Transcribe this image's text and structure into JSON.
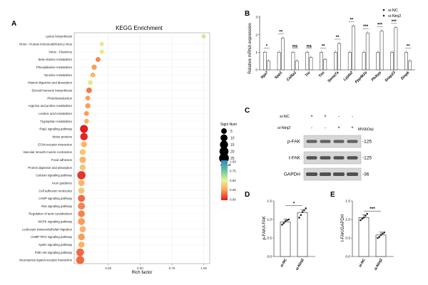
{
  "panel_labels": {
    "a": "A",
    "b": "B",
    "c": "C",
    "d": "D",
    "e": "E"
  },
  "colors": {
    "dot_low": "#e41a1c",
    "dot_mid": "#fee08b",
    "dot_high": "#3288bd",
    "bar_edge": "#222222",
    "blot_band": "#3a3a3a",
    "blot_bg": "#d6d6d6"
  },
  "chart_data": [
    {
      "id": "kegg",
      "type": "scatter",
      "title": "KEGG Enrichment",
      "xlabel": "Rich factor",
      "ylabel": "",
      "xlim": [
        0.0,
        1.03
      ],
      "xticks": [
        0.25,
        0.5,
        0.75,
        1.0
      ],
      "xtick_labels": [
        "0.25",
        "0.50",
        "0.75",
        "1.00"
      ],
      "terms": [
        "Lysine biosynthesis",
        "Virion - Human immunodeficiency virus",
        "Virion - Flavivirus",
        "beta-Alanine metabolism",
        "Phenylalanine metabolism",
        "Tyrosine metabolism",
        "Vitamin digestion and absorption",
        "Steroid hormone biosynthesis",
        "Phototransduction",
        "Arginine and proline metabolism",
        "Linoleic acid metabolism",
        "Tryptophan metabolism",
        "Rap1 signaling pathway",
        "Motor proteins",
        "ECM-receptor interaction",
        "Vascular smooth muscle contraction",
        "Focal adhesion",
        "Protein digestion and absorption",
        "Calcium signaling pathway",
        "Axon guidance",
        "Cell adhesion molecules",
        "cAMP signaling pathway",
        "Ras signaling pathway",
        "Regulation of actin cytoskeleton",
        "MAPK signaling pathway",
        "Leukocyte transendothelial migration",
        "cGMP-PKG signaling pathway",
        "Apelin signaling pathway",
        "PI3K-Akt signaling pathway",
        "Neuroactive ligand-receptor interaction"
      ],
      "rich_factor": [
        1.0,
        0.2,
        0.2,
        0.17,
        0.14,
        0.13,
        0.11,
        0.1,
        0.09,
        0.09,
        0.08,
        0.08,
        0.06,
        0.06,
        0.06,
        0.05,
        0.05,
        0.05,
        0.04,
        0.04,
        0.04,
        0.04,
        0.04,
        0.04,
        0.04,
        0.05,
        0.04,
        0.04,
        0.03,
        0.03
      ],
      "signi_num": [
        2,
        2,
        2,
        3,
        4,
        3,
        3,
        5,
        3,
        4,
        3,
        3,
        14,
        12,
        6,
        6,
        8,
        6,
        16,
        7,
        7,
        10,
        10,
        9,
        10,
        7,
        9,
        7,
        13,
        15
      ],
      "qvalue": [
        0.55,
        0.45,
        0.45,
        0.2,
        0.25,
        0.3,
        0.45,
        0.18,
        0.25,
        0.25,
        0.25,
        0.3,
        0.0,
        0.02,
        0.3,
        0.35,
        0.3,
        0.35,
        0.05,
        0.3,
        0.35,
        0.15,
        0.2,
        0.2,
        0.25,
        0.3,
        0.25,
        0.3,
        0.15,
        0.15
      ],
      "legend_size_title": "Signi Num",
      "legend_sizes": [
        5,
        10,
        15,
        20,
        25
      ],
      "legend_color_title": "qvalue",
      "legend_color_ticks": [
        "1.00",
        "0.75",
        "0.50",
        "0.25",
        "0.00"
      ]
    },
    {
      "id": "qpcr",
      "type": "bar",
      "ylabel": "Relative mRNA expression",
      "ylim": [
        0,
        3
      ],
      "yticks": [
        "0",
        "1",
        "2",
        "3"
      ],
      "categories": [
        "Itga7",
        "Spp1",
        "Col5a1",
        "Tnr",
        "Tnn",
        "Sema7a",
        "Lypla2",
        "Ppp4k2a",
        "Plxbyp",
        "Snap23",
        "Dmpk"
      ],
      "series": [
        {
          "name": "si-NC",
          "values": [
            1.0,
            1.0,
            1.0,
            1.0,
            1.0,
            1.0,
            1.0,
            1.0,
            1.0,
            1.0,
            1.0
          ]
        },
        {
          "name": "si-Ninj2",
          "values": [
            0.5,
            1.8,
            0.5,
            0.7,
            0.6,
            1.5,
            2.5,
            2.1,
            2.2,
            2.4,
            0.5
          ]
        }
      ],
      "significance": [
        "*",
        "**",
        "ns",
        "ns",
        "**",
        "**",
        "**",
        "***",
        "***",
        "***",
        "**"
      ],
      "legend": [
        "si-NC",
        "si-Ninj2"
      ]
    },
    {
      "id": "blot",
      "type": "table",
      "row_labels": [
        "si-NC",
        "si-Ninj2"
      ],
      "lanes_si_nc": [
        "+",
        "+",
        "-",
        "-"
      ],
      "lanes_si_ninj2": [
        "-",
        "-",
        "+",
        "+"
      ],
      "mw_header": "MV(kDa)",
      "bands": [
        {
          "name": "p-FAK",
          "mw": "-125"
        },
        {
          "name": "t-FAK",
          "mw": "-125"
        },
        {
          "name": "GAPDH",
          "mw": "-36"
        }
      ]
    },
    {
      "id": "d",
      "type": "bar",
      "ylabel": "p-FAK/t-FAK",
      "ylim": [
        0.0,
        1.5
      ],
      "yticks": [
        "0.0",
        "0.5",
        "1.0",
        "1.5"
      ],
      "categories": [
        "si-NC",
        "si-Ninj2"
      ],
      "values": [
        0.93,
        1.19
      ],
      "points": [
        [
          0.86,
          0.9,
          0.95,
          0.98,
          1.0
        ],
        [
          1.05,
          1.12,
          1.2,
          1.25,
          1.3
        ]
      ],
      "significance": "*"
    },
    {
      "id": "e",
      "type": "bar",
      "ylabel": "t-FAK/GAPDH",
      "ylim": [
        0.0,
        1.5
      ],
      "yticks": [
        "0.0",
        "0.5",
        "1.0",
        "1.5"
      ],
      "categories": [
        "si-NC",
        "si-Ninj2"
      ],
      "values": [
        1.05,
        0.58
      ],
      "points": [
        [
          0.98,
          1.02,
          1.05,
          1.1,
          1.15
        ],
        [
          0.5,
          0.53,
          0.58,
          0.62,
          0.65
        ]
      ],
      "significance": "***"
    }
  ]
}
